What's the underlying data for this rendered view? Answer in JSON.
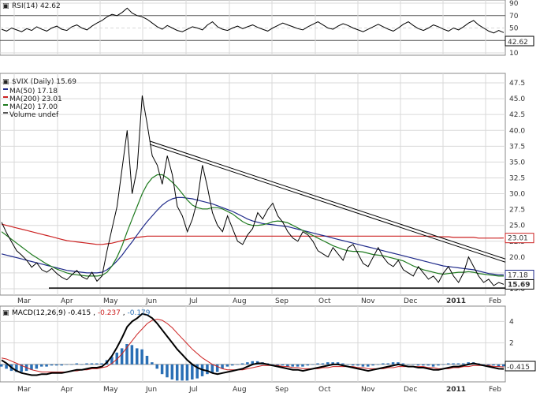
{
  "colors": {
    "background": "#ffffff",
    "grid": "#d9d9d9",
    "price": "#000000",
    "ma50": "#1f2a8a",
    "ma200": "#cc2222",
    "ma20": "#1e7a1e",
    "rsi": "#000000",
    "macd": "#000000",
    "signal": "#cc2222",
    "histogram": "#2a6fb5",
    "trendline": "#000000"
  },
  "months": [
    "Mar",
    "Apr",
    "May",
    "Jun",
    "Jul",
    "Aug",
    "Sep",
    "Oct",
    "Nov",
    "Dec",
    "2011",
    "Feb"
  ],
  "rsi_panel": {
    "legend_title": "RSI(14) 42.62",
    "ticks": [
      "90",
      "70",
      "50",
      "30",
      "10"
    ],
    "last_value_label": "42.62"
  },
  "price_panel": {
    "title": "$VIX (Daily) 15.69",
    "legend": [
      {
        "text": "MA(50) 17.18",
        "color": "#1f2a8a"
      },
      {
        "text": "MA(200) 23.01",
        "color": "#cc2222"
      },
      {
        "text": "MA(20) 17.00",
        "color": "#1e7a1e"
      },
      {
        "text": "Volume undef",
        "color": "#555555"
      }
    ],
    "ticks": [
      "47.5",
      "45.0",
      "42.5",
      "40.0",
      "37.5",
      "35.0",
      "32.5",
      "30.0",
      "27.5",
      "25.0",
      "22.5",
      "20.0",
      "17.5",
      "15.0"
    ],
    "value_labels": [
      {
        "text": "23.01",
        "value": 23.01,
        "bg": "#ffffff",
        "fg": "#000000",
        "border": "#cc2222"
      },
      {
        "text": "17.18",
        "value": 17.18,
        "bg": "#ffffff",
        "fg": "#000000",
        "border": "#1f2a8a"
      },
      {
        "text": "15.69",
        "value": 15.69,
        "bg": "#ffffff",
        "fg": "#000000",
        "border": "#000000"
      }
    ]
  },
  "macd_panel": {
    "legend_prefix": "MACD(12,26,9)",
    "legend_values": [
      "-0.415",
      "-0.237",
      "-0.179"
    ],
    "ticks": [
      "4",
      "2"
    ],
    "last_value_label": "-0.415"
  },
  "chart_data": [
    {
      "type": "line",
      "title": "RSI(14) 42.62",
      "ylim": [
        10,
        90
      ],
      "series": [
        {
          "name": "RSI(14)",
          "values": [
            48,
            45,
            50,
            47,
            44,
            49,
            46,
            52,
            48,
            45,
            50,
            53,
            48,
            46,
            52,
            55,
            50,
            47,
            53,
            58,
            62,
            68,
            72,
            70,
            75,
            82,
            74,
            70,
            68,
            64,
            58,
            52,
            48,
            54,
            50,
            46,
            44,
            48,
            52,
            50,
            47,
            55,
            60,
            52,
            48,
            46,
            50,
            53,
            49,
            52,
            55,
            51,
            48,
            45,
            50,
            54,
            58,
            55,
            52,
            49,
            47,
            52,
            56,
            60,
            55,
            50,
            48,
            53,
            57,
            54,
            50,
            47,
            44,
            48,
            52,
            56,
            52,
            48,
            45,
            50,
            56,
            60,
            54,
            49,
            46,
            50,
            55,
            52,
            48,
            45,
            50,
            47,
            52,
            58,
            62,
            55,
            50,
            45,
            42,
            46,
            42.62
          ]
        }
      ]
    },
    {
      "type": "line",
      "title": "$VIX (Daily) 15.69",
      "ylim": [
        14.5,
        48.5
      ],
      "series": [
        {
          "name": "$VIX",
          "values": [
            25.5,
            23.8,
            22.4,
            21.0,
            20.3,
            19.5,
            18.4,
            19.1,
            18.0,
            17.6,
            18.2,
            17.4,
            16.8,
            16.4,
            17.2,
            17.9,
            16.9,
            16.5,
            17.6,
            16.2,
            17.0,
            21.0,
            24.5,
            28.0,
            34.0,
            40.0,
            30.0,
            34.0,
            45.5,
            41.0,
            36.0,
            34.5,
            31.5,
            36.0,
            33.0,
            28.0,
            26.5,
            24.0,
            26.0,
            29.0,
            34.5,
            31.0,
            27.0,
            25.0,
            24.0,
            26.5,
            24.5,
            22.5,
            22.0,
            23.5,
            24.5,
            27.0,
            26.0,
            27.5,
            28.5,
            26.5,
            25.5,
            24.0,
            23.0,
            22.5,
            24.0,
            23.5,
            22.5,
            21.0,
            20.5,
            20.0,
            21.5,
            20.5,
            19.5,
            21.5,
            22.0,
            20.5,
            19.0,
            18.5,
            20.0,
            21.5,
            20.0,
            19.0,
            18.5,
            19.5,
            18.0,
            17.5,
            17.0,
            18.5,
            17.5,
            16.5,
            17.0,
            16.0,
            17.5,
            18.5,
            17.0,
            16.0,
            17.5,
            20.0,
            18.5,
            17.0,
            16.0,
            16.5,
            15.5,
            16.0,
            15.69
          ]
        },
        {
          "name": "MA(50)",
          "values": [
            20.5,
            20.3,
            20.1,
            19.9,
            19.7,
            19.5,
            19.3,
            19.1,
            18.9,
            18.7,
            18.5,
            18.3,
            18.1,
            17.9,
            17.8,
            17.7,
            17.6,
            17.5,
            17.5,
            17.5,
            17.6,
            18.0,
            18.6,
            19.4,
            20.3,
            21.4,
            22.4,
            23.5,
            24.6,
            25.6,
            26.5,
            27.4,
            28.2,
            28.8,
            29.2,
            29.4,
            29.4,
            29.3,
            29.2,
            29.0,
            28.8,
            28.6,
            28.4,
            28.1,
            27.8,
            27.5,
            27.2,
            26.8,
            26.4,
            26.0,
            25.7,
            25.5,
            25.3,
            25.2,
            25.1,
            25.0,
            24.9,
            24.8,
            24.6,
            24.4,
            24.2,
            24.0,
            23.8,
            23.6,
            23.4,
            23.2,
            23.0,
            22.8,
            22.6,
            22.4,
            22.2,
            22.0,
            21.8,
            21.6,
            21.4,
            21.2,
            21.0,
            20.8,
            20.6,
            20.4,
            20.2,
            20.0,
            19.8,
            19.6,
            19.4,
            19.2,
            19.0,
            18.8,
            18.6,
            18.5,
            18.4,
            18.3,
            18.2,
            18.1,
            18.0,
            17.8,
            17.6,
            17.4,
            17.3,
            17.2,
            17.18
          ]
        },
        {
          "name": "MA(200)",
          "values": [
            25.2,
            25.0,
            24.8,
            24.6,
            24.4,
            24.2,
            24.0,
            23.8,
            23.6,
            23.4,
            23.2,
            23.0,
            22.8,
            22.6,
            22.5,
            22.4,
            22.3,
            22.2,
            22.1,
            22.0,
            22.0,
            22.1,
            22.2,
            22.4,
            22.6,
            22.8,
            23.0,
            23.1,
            23.2,
            23.3,
            23.3,
            23.3,
            23.3,
            23.3,
            23.3,
            23.3,
            23.3,
            23.3,
            23.3,
            23.3,
            23.3,
            23.3,
            23.3,
            23.3,
            23.3,
            23.3,
            23.3,
            23.3,
            23.3,
            23.3,
            23.3,
            23.3,
            23.3,
            23.3,
            23.3,
            23.3,
            23.3,
            23.3,
            23.3,
            23.3,
            23.3,
            23.3,
            23.3,
            23.3,
            23.3,
            23.3,
            23.3,
            23.3,
            23.3,
            23.3,
            23.3,
            23.3,
            23.3,
            23.3,
            23.3,
            23.3,
            23.3,
            23.3,
            23.3,
            23.3,
            23.3,
            23.3,
            23.3,
            23.3,
            23.3,
            23.3,
            23.3,
            23.2,
            23.2,
            23.2,
            23.1,
            23.1,
            23.1,
            23.1,
            23.1,
            23.0,
            23.0,
            23.0,
            23.0,
            23.0,
            23.01
          ]
        },
        {
          "name": "MA(20)",
          "values": [
            24.0,
            23.4,
            22.8,
            22.2,
            21.6,
            21.0,
            20.4,
            19.9,
            19.4,
            18.9,
            18.5,
            18.1,
            17.8,
            17.5,
            17.3,
            17.2,
            17.1,
            17.0,
            17.0,
            17.0,
            17.1,
            17.6,
            18.6,
            20.0,
            21.8,
            24.0,
            26.0,
            28.0,
            30.0,
            31.5,
            32.5,
            33.0,
            33.0,
            32.5,
            31.8,
            31.0,
            30.0,
            29.0,
            28.2,
            27.8,
            27.6,
            27.6,
            27.8,
            27.8,
            27.6,
            27.2,
            26.8,
            26.2,
            25.6,
            25.2,
            25.0,
            25.0,
            25.1,
            25.3,
            25.6,
            25.7,
            25.6,
            25.4,
            25.0,
            24.6,
            24.2,
            23.8,
            23.4,
            23.0,
            22.6,
            22.2,
            21.8,
            21.5,
            21.2,
            21.0,
            20.9,
            20.9,
            20.8,
            20.6,
            20.4,
            20.3,
            20.2,
            20.0,
            19.8,
            19.6,
            19.4,
            19.0,
            18.6,
            18.3,
            18.0,
            17.8,
            17.6,
            17.4,
            17.3,
            17.4,
            17.5,
            17.6,
            17.6,
            17.7,
            17.6,
            17.4,
            17.3,
            17.2,
            17.1,
            17.0,
            17.0
          ]
        }
      ]
    },
    {
      "type": "line",
      "title": "MACD(12,26,9) -0.415, -0.237, -0.179",
      "ylim": [
        -1.4,
        5.2
      ],
      "series": [
        {
          "name": "MACD",
          "values": [
            0.4,
            0.1,
            -0.3,
            -0.6,
            -0.8,
            -0.9,
            -1.0,
            -1.0,
            -0.9,
            -0.9,
            -0.8,
            -0.8,
            -0.8,
            -0.7,
            -0.6,
            -0.5,
            -0.5,
            -0.4,
            -0.3,
            -0.3,
            -0.2,
            0.2,
            0.8,
            1.6,
            2.5,
            3.5,
            4.0,
            4.3,
            4.7,
            4.6,
            4.3,
            3.8,
            3.2,
            2.6,
            2.0,
            1.4,
            0.9,
            0.4,
            0.0,
            -0.3,
            -0.5,
            -0.6,
            -0.8,
            -0.9,
            -0.8,
            -0.7,
            -0.6,
            -0.5,
            -0.4,
            -0.2,
            0.0,
            0.1,
            0.1,
            0.0,
            -0.1,
            -0.2,
            -0.3,
            -0.4,
            -0.5,
            -0.5,
            -0.6,
            -0.5,
            -0.4,
            -0.3,
            -0.2,
            -0.1,
            0.0,
            0.0,
            -0.1,
            -0.2,
            -0.3,
            -0.4,
            -0.5,
            -0.6,
            -0.5,
            -0.4,
            -0.3,
            -0.2,
            -0.1,
            0.0,
            -0.1,
            -0.2,
            -0.2,
            -0.3,
            -0.3,
            -0.4,
            -0.5,
            -0.5,
            -0.4,
            -0.3,
            -0.2,
            -0.2,
            -0.1,
            0.0,
            0.1,
            0.0,
            -0.1,
            -0.2,
            -0.3,
            -0.4,
            -0.415
          ]
        },
        {
          "name": "Signal",
          "values": [
            0.6,
            0.5,
            0.3,
            0.1,
            -0.1,
            -0.3,
            -0.5,
            -0.6,
            -0.7,
            -0.7,
            -0.7,
            -0.7,
            -0.7,
            -0.7,
            -0.6,
            -0.6,
            -0.5,
            -0.5,
            -0.4,
            -0.4,
            -0.3,
            -0.2,
            0.1,
            0.5,
            1.0,
            1.6,
            2.2,
            2.8,
            3.3,
            3.8,
            4.1,
            4.2,
            4.1,
            3.8,
            3.4,
            2.9,
            2.4,
            1.9,
            1.4,
            1.0,
            0.6,
            0.3,
            0.0,
            -0.2,
            -0.4,
            -0.5,
            -0.5,
            -0.5,
            -0.5,
            -0.4,
            -0.3,
            -0.2,
            -0.1,
            -0.1,
            -0.1,
            -0.1,
            -0.2,
            -0.2,
            -0.3,
            -0.3,
            -0.4,
            -0.4,
            -0.4,
            -0.4,
            -0.3,
            -0.3,
            -0.2,
            -0.2,
            -0.2,
            -0.2,
            -0.2,
            -0.3,
            -0.3,
            -0.4,
            -0.4,
            -0.4,
            -0.4,
            -0.3,
            -0.3,
            -0.2,
            -0.2,
            -0.2,
            -0.2,
            -0.2,
            -0.2,
            -0.3,
            -0.3,
            -0.4,
            -0.4,
            -0.4,
            -0.3,
            -0.3,
            -0.2,
            -0.2,
            -0.1,
            -0.1,
            -0.1,
            -0.1,
            -0.2,
            -0.2,
            -0.237
          ]
        }
      ]
    }
  ]
}
